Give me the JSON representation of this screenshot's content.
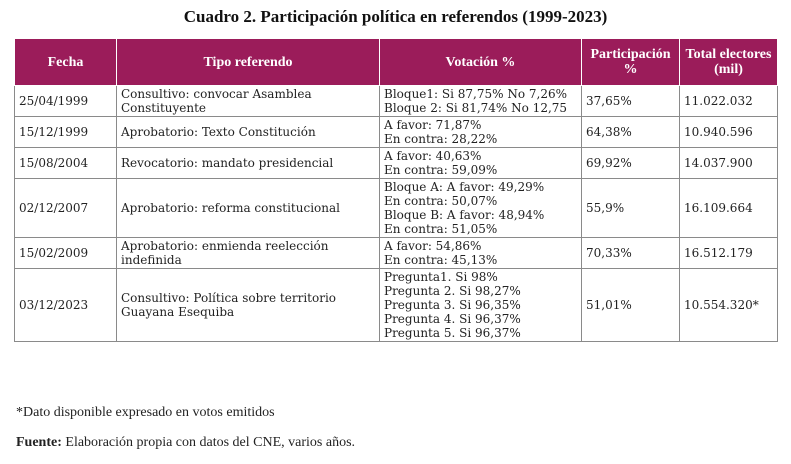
{
  "title": "Cuadro 2. Participación política en referendos (1999-2023)",
  "headers": [
    "Fecha",
    "Tipo referendo",
    "Votación %",
    "Participación %",
    "Total electores (mil)"
  ],
  "rows": [
    {
      "fecha": "25/04/1999",
      "tipo": "Consultivo: convocar Asamblea Constituyente",
      "votacion": [
        "Bloque1: Si 87,75% No 7,26%",
        "Bloque 2: Si 81,74% No 12,75"
      ],
      "participacion": "37,65%",
      "total": "11.022.032"
    },
    {
      "fecha": "15/12/1999",
      "tipo": "Aprobatorio: Texto Constitución",
      "votacion": [
        "A favor: 71,87%",
        "En contra: 28,22%"
      ],
      "participacion": "64,38%",
      "total": "10.940.596"
    },
    {
      "fecha": "15/08/2004",
      "tipo": "Revocatorio: mandato presidencial",
      "votacion": [
        "A favor: 40,63%",
        "En contra: 59,09%"
      ],
      "participacion": "69,92%",
      "total": "14.037.900"
    },
    {
      "fecha": "02/12/2007",
      "tipo": "Aprobatorio: reforma constitucional",
      "votacion": [
        "Bloque A: A favor: 49,29%",
        "En contra: 50,07%",
        "Bloque B: A favor: 48,94%",
        "En contra: 51,05%"
      ],
      "participacion": "55,9%",
      "total": "16.109.664"
    },
    {
      "fecha": "15/02/2009",
      "tipo": "Aprobatorio: enmienda reelección indefinida",
      "votacion": [
        "A favor: 54,86%",
        "En contra: 45,13%"
      ],
      "participacion": "70,33%",
      "total": "16.512.179"
    },
    {
      "fecha": "03/12/2023",
      "tipo": "Consultivo: Política sobre territorio Guayana Esequiba",
      "votacion": [
        "Pregunta1. Si 98%",
        "Pregunta 2. Si 98,27%",
        "Pregunta 3. Si 96,35%",
        "Pregunta 4. Si 96,37%",
        "Pregunta 5. Si 96,37%"
      ],
      "participacion": "51,01%",
      "total": "10.554.320*"
    }
  ],
  "footnote": "*Dato disponible expresado en votos emitidos",
  "source_label": "Fuente:",
  "source_text": " Elaboración propia con datos del CNE, varios años."
}
